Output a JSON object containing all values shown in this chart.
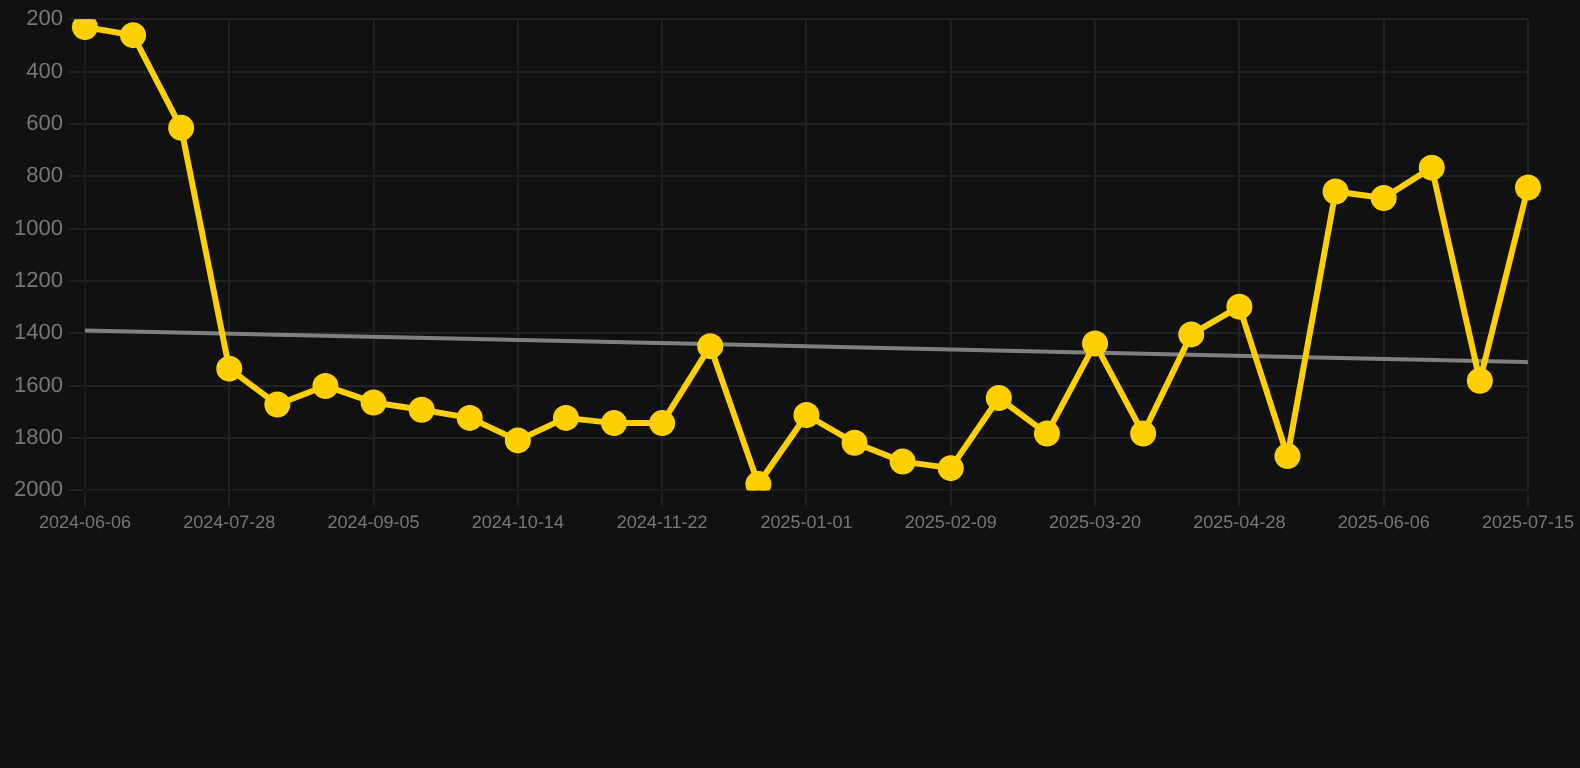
{
  "chart_data": {
    "type": "line",
    "categories": [
      "2024-06-06",
      null,
      null,
      "2024-07-28",
      null,
      null,
      "2024-09-05",
      null,
      null,
      "2024-10-14",
      null,
      null,
      "2024-11-22",
      null,
      null,
      "2025-01-01",
      null,
      null,
      "2025-02-09",
      null,
      null,
      "2025-03-20",
      null,
      null,
      "2025-04-28",
      null,
      null,
      "2025-06-06",
      null,
      null,
      "2025-07-15"
    ],
    "series": [
      {
        "color": "#ffd000",
        "marker": "circle",
        "values": [
          230,
          261,
          615,
          1535,
          1672,
          1601,
          1664,
          1692,
          1723,
          1809,
          1723,
          1743,
          1743,
          1449,
          1976,
          1712,
          1818,
          1890,
          1915,
          1647,
          1783,
          1439,
          1783,
          1404,
          1298,
          1869,
          858,
          883,
          767,
          1581,
          843
        ]
      },
      {
        "type": "line",
        "color": "#808080",
        "marker": "none",
        "values": [
          1389,
          null,
          null,
          null,
          null,
          null,
          null,
          null,
          null,
          null,
          null,
          null,
          null,
          null,
          null,
          null,
          null,
          null,
          null,
          null,
          null,
          null,
          null,
          null,
          null,
          null,
          null,
          null,
          null,
          null,
          1510
        ]
      }
    ],
    "ylim": [
      2000,
      200
    ],
    "yticks": [
      200,
      400,
      600,
      800,
      1000,
      1200,
      1400,
      1600,
      1800,
      2000
    ],
    "grid": true,
    "legend": false
  }
}
